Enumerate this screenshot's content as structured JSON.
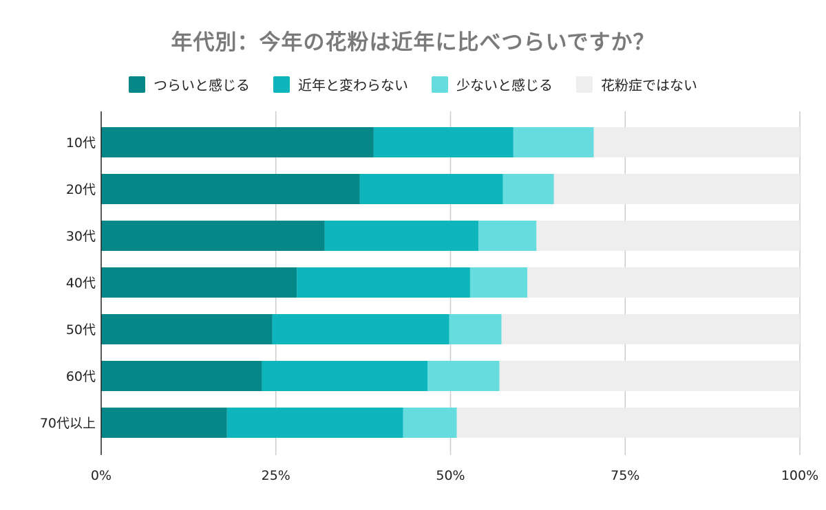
{
  "chart_data": {
    "type": "bar",
    "orientation": "horizontal",
    "stacked": true,
    "percent_stacked": true,
    "title": "年代別：今年の花粉は近年に比べつらいですか？",
    "categories": [
      "10代",
      "20代",
      "30代",
      "40代",
      "50代",
      "60代",
      "70代以上"
    ],
    "series": [
      {
        "name": "つらいと感じる",
        "color": "#068787",
        "values": [
          39,
          37,
          32,
          28,
          24.5,
          23,
          18
        ]
      },
      {
        "name": "近年と変わらない",
        "color": "#0fb5bd",
        "values": [
          20,
          20.5,
          22,
          24.8,
          25.3,
          23.7,
          25.2
        ]
      },
      {
        "name": "少ないと感じる",
        "color": "#66dcdf",
        "values": [
          11.5,
          7.3,
          8.3,
          8.2,
          7.5,
          10.3,
          7.7
        ]
      },
      {
        "name": "花粉症ではない",
        "color": "#eeeeee",
        "values": [
          29.5,
          35.2,
          37.7,
          39,
          42.7,
          43,
          49.1
        ]
      }
    ],
    "xlim": [
      0,
      100
    ],
    "xticks": [
      0,
      25,
      50,
      75,
      100
    ],
    "xtick_labels": [
      "0%",
      "25%",
      "50%",
      "75%",
      "100%"
    ],
    "grid": true,
    "legend_position": "top"
  }
}
